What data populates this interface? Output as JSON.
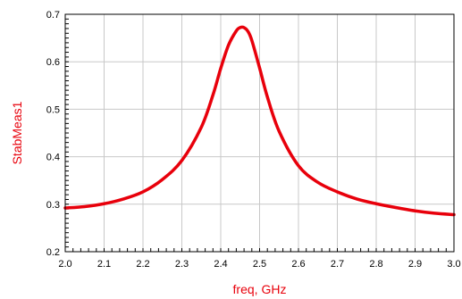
{
  "chart_data": {
    "type": "line",
    "xlabel": "freq, GHz",
    "ylabel": "StabMeas1",
    "xlim": [
      2.0,
      3.0
    ],
    "ylim": [
      0.2,
      0.7
    ],
    "xticks": [
      "2.0",
      "2.1",
      "2.2",
      "2.3",
      "2.4",
      "2.5",
      "2.6",
      "2.7",
      "2.8",
      "2.9",
      "3.0"
    ],
    "yticks": [
      "0.2",
      "0.3",
      "0.4",
      "0.5",
      "0.6",
      "0.7"
    ],
    "grid": true,
    "colors": {
      "series": "#e8000b",
      "axis_title": "#e8000b",
      "grid": "#c8c8c8"
    },
    "series": [
      {
        "x": [
          2.0,
          2.05,
          2.1,
          2.15,
          2.2,
          2.25,
          2.3,
          2.35,
          2.38,
          2.4,
          2.42,
          2.44,
          2.45,
          2.46,
          2.47,
          2.48,
          2.5,
          2.52,
          2.55,
          2.6,
          2.65,
          2.7,
          2.75,
          2.8,
          2.85,
          2.9,
          2.95,
          3.0
        ],
        "y": [
          0.292,
          0.295,
          0.301,
          0.311,
          0.326,
          0.352,
          0.392,
          0.462,
          0.53,
          0.586,
          0.635,
          0.665,
          0.672,
          0.672,
          0.664,
          0.645,
          0.587,
          0.526,
          0.454,
          0.381,
          0.346,
          0.326,
          0.311,
          0.301,
          0.293,
          0.286,
          0.281,
          0.278
        ]
      }
    ]
  }
}
